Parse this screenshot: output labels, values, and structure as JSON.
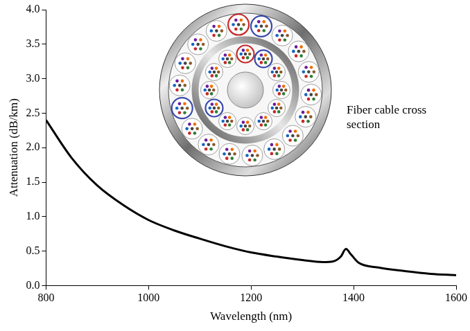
{
  "chart_data": {
    "type": "line",
    "x_label": "Wavelength (nm)",
    "y_label": "Attenuation (dB/km)",
    "annotation": "Fiber cable cross section",
    "x": [
      800,
      850,
      900,
      950,
      1000,
      1050,
      1100,
      1150,
      1200,
      1250,
      1300,
      1340,
      1360,
      1375,
      1385,
      1395,
      1410,
      1450,
      1500,
      1550,
      1600
    ],
    "values": [
      2.4,
      1.85,
      1.45,
      1.17,
      0.95,
      0.8,
      0.68,
      0.57,
      0.48,
      0.42,
      0.37,
      0.34,
      0.35,
      0.42,
      0.53,
      0.45,
      0.33,
      0.26,
      0.21,
      0.17,
      0.15
    ],
    "color": "#000000",
    "marker": "none",
    "line_style": "solid",
    "xlim": [
      800,
      1600
    ],
    "xticks": [
      800,
      1000,
      1200,
      1400,
      1600
    ],
    "ylim": [
      0,
      4
    ],
    "yticks": [
      {
        "value": 0,
        "label": "0.0"
      },
      0.5,
      {
        "value": 1,
        "label": "1.0"
      },
      1.5,
      {
        "value": 2,
        "label": "2.0"
      },
      2.5,
      {
        "value": 3,
        "label": "3.0"
      },
      3.5,
      {
        "value": 4,
        "label": "4.0"
      }
    ],
    "grid": false
  }
}
